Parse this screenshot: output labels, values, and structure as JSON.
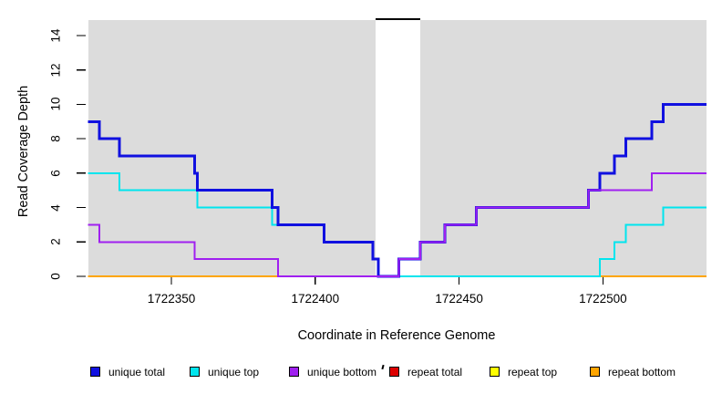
{
  "chart_data": {
    "type": "line",
    "subtype": "step-coverage-plot",
    "title": "",
    "xlabel": "Coordinate in Reference Genome",
    "ylabel": "Read Coverage Depth",
    "xlim": [
      1722321,
      1722536
    ],
    "ylim": [
      0,
      14.9
    ],
    "x_ticks": [
      1722350,
      1722400,
      1722450,
      1722500
    ],
    "y_ticks": [
      0,
      2,
      4,
      6,
      8,
      10,
      12,
      14
    ],
    "grid": "off",
    "plot_bg_color": "#dcdcdc",
    "tick_color": "#000000",
    "gap_region": {
      "x_start": 1722421,
      "x_end": 1722436.5,
      "fill": "#ffffff",
      "top_border_color": "#000000"
    },
    "series": [
      {
        "name": "repeat total",
        "color": "#dd0000",
        "line_width": 2,
        "steps": [
          [
            1722321,
            0
          ]
        ]
      },
      {
        "name": "repeat top",
        "color": "#ffff00",
        "line_width": 2,
        "steps": [
          [
            1722321,
            0
          ]
        ]
      },
      {
        "name": "repeat bottom",
        "color": "#ffa500",
        "line_width": 2,
        "steps": [
          [
            1722321,
            0
          ]
        ]
      },
      {
        "name": "unique top",
        "color": "#00e5ee",
        "line_width": 2,
        "steps": [
          [
            1722321,
            6
          ],
          [
            1722332,
            5
          ],
          [
            1722359,
            4
          ],
          [
            1722385,
            3
          ],
          [
            1722403,
            2
          ],
          [
            1722420,
            1
          ],
          [
            1722422,
            0
          ],
          [
            1722499,
            1
          ],
          [
            1722504,
            2
          ],
          [
            1722508,
            3
          ],
          [
            1722521,
            4
          ]
        ]
      },
      {
        "name": "unique total",
        "color": "#1010e0",
        "line_width": 3,
        "steps": [
          [
            1722321,
            9
          ],
          [
            1722325,
            8
          ],
          [
            1722332,
            7
          ],
          [
            1722358,
            6
          ],
          [
            1722359,
            5
          ],
          [
            1722385,
            4
          ],
          [
            1722387,
            3
          ],
          [
            1722403,
            2
          ],
          [
            1722420,
            1
          ],
          [
            1722422,
            0
          ],
          [
            1722429,
            1
          ],
          [
            1722436.5,
            2
          ],
          [
            1722445,
            3
          ],
          [
            1722456,
            4
          ],
          [
            1722495,
            5
          ],
          [
            1722499,
            6
          ],
          [
            1722504,
            7
          ],
          [
            1722508,
            8
          ],
          [
            1722517,
            9
          ],
          [
            1722521,
            10
          ]
        ]
      },
      {
        "name": "unique bottom",
        "color": "#a020f0",
        "line_width": 2,
        "steps": [
          [
            1722321,
            3
          ],
          [
            1722325,
            2
          ],
          [
            1722358,
            1
          ],
          [
            1722387,
            0
          ],
          [
            1722429,
            1
          ],
          [
            1722436.5,
            2
          ],
          [
            1722445,
            3
          ],
          [
            1722456,
            4
          ],
          [
            1722495,
            5
          ],
          [
            1722517,
            6
          ]
        ]
      }
    ],
    "legend": [
      {
        "label": "unique total",
        "color": "#1010e0"
      },
      {
        "label": "unique top",
        "color": "#00e5ee"
      },
      {
        "label": "unique bottom",
        "color": "#a020f0"
      },
      {
        "label": "repeat total",
        "color": "#dd0000"
      },
      {
        "label": "repeat top",
        "color": "#ffff00"
      },
      {
        "label": "repeat bottom",
        "color": "#ffa500"
      }
    ],
    "legend_position": "bottom",
    "legend_stray_mark": "'"
  }
}
